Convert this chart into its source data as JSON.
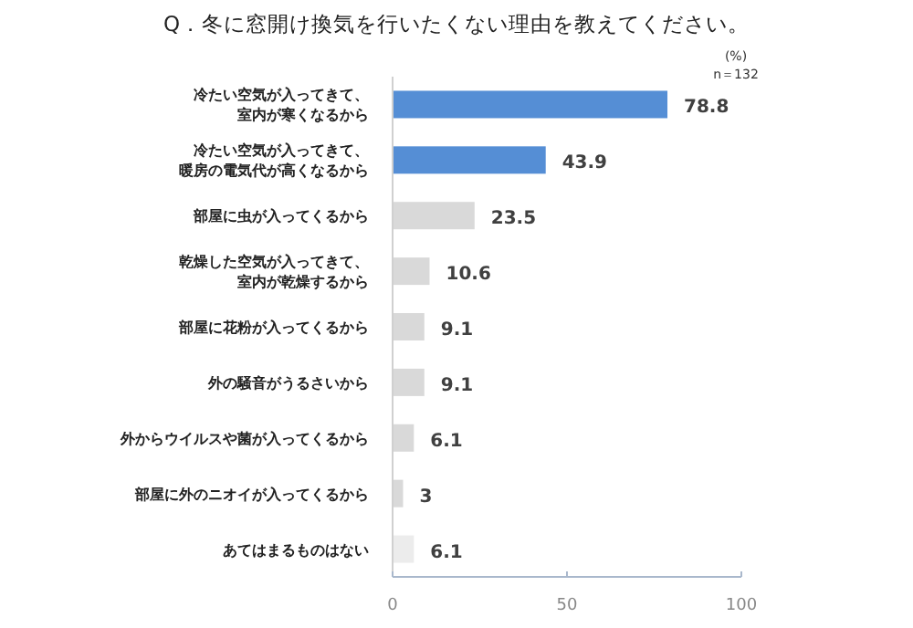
{
  "chart_data": {
    "type": "bar",
    "orientation": "horizontal",
    "title": "Q．冬に窓開け換気を行いたくない理由を教えてください。",
    "annotations": [
      "(%)",
      "n＝132"
    ],
    "categories": [
      "冷たい空気が入ってきて、室内が寒くなるから",
      "冷たい空気が入ってきて、暖房の電気代が高くなるから",
      "部屋に虫が入ってくるから",
      "乾燥した空気が入ってきて、室内が乾燥するから",
      "部屋に花粉が入ってくるから",
      "外の騒音がうるさいから",
      "外からウイルスや菌が入ってくるから",
      "部屋に外のニオイが入ってくるから",
      "あてはまるものはない"
    ],
    "values": [
      78.8,
      43.9,
      23.5,
      10.6,
      9.1,
      9.1,
      6.1,
      3,
      6.1
    ],
    "colors": [
      "#558ed5",
      "#558ed5",
      "#d9d9d9",
      "#d9d9d9",
      "#d9d9d9",
      "#d9d9d9",
      "#d9d9d9",
      "#d9d9d9",
      "#ececec"
    ],
    "xlim": [
      0,
      100
    ],
    "xticks": [
      0,
      50,
      100
    ],
    "data_labels": true,
    "grid": false
  }
}
